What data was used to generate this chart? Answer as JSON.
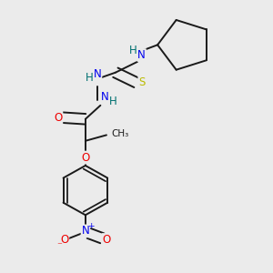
{
  "background_color": "#ebebeb",
  "bond_color": "#1a1a1a",
  "atom_colors": {
    "N": "#0000ee",
    "O": "#ee0000",
    "S": "#bbbb00",
    "H": "#007070",
    "C": "#1a1a1a"
  }
}
